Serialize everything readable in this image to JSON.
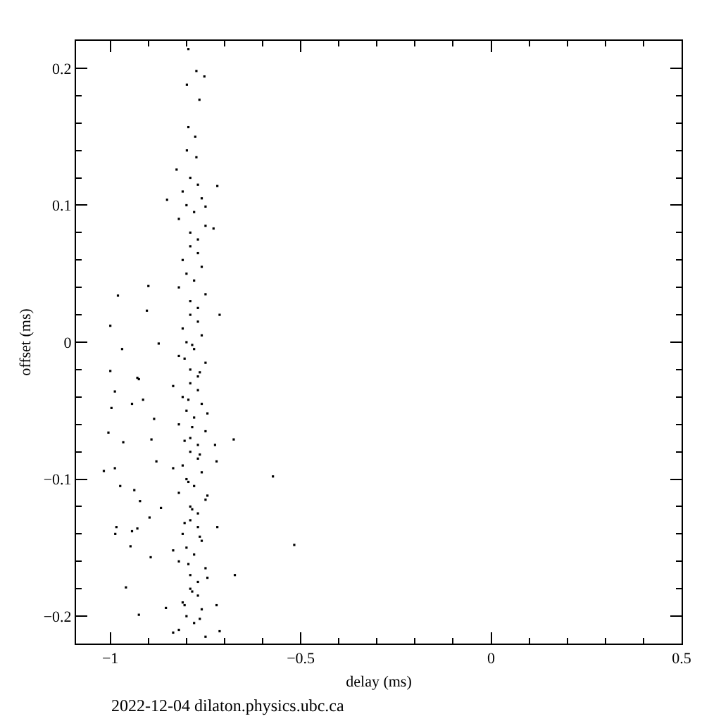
{
  "chart_data": {
    "type": "scatter",
    "xlabel": "delay (ms)",
    "ylabel": "offset (ms)",
    "annotations": [
      "2022-12-04 dilaton.physics.ubc.ca"
    ],
    "xlim": [
      -1.09,
      0.5
    ],
    "ylim": [
      -0.22,
      0.22
    ],
    "xticks": [
      -1,
      {
        "value": -0.9,
        "label": null
      },
      {
        "value": -0.8,
        "label": null
      },
      {
        "value": -0.7,
        "label": null
      },
      {
        "value": -0.6,
        "label": null
      },
      -0.5,
      {
        "value": -0.4,
        "label": null
      },
      {
        "value": -0.3,
        "label": null
      },
      {
        "value": -0.2,
        "label": null
      },
      {
        "value": -0.1,
        "label": null
      },
      0,
      {
        "value": 0.1,
        "label": null
      },
      {
        "value": 0.2,
        "label": null
      },
      {
        "value": 0.3,
        "label": null
      },
      {
        "value": 0.4,
        "label": null
      },
      0.5
    ],
    "yticks": [
      -0.2,
      {
        "value": -0.18,
        "label": null
      },
      {
        "value": -0.16,
        "label": null
      },
      {
        "value": -0.14,
        "label": null
      },
      {
        "value": -0.12,
        "label": null
      },
      -0.1,
      {
        "value": -0.08,
        "label": null
      },
      {
        "value": -0.06,
        "label": null
      },
      {
        "value": -0.04,
        "label": null
      },
      {
        "value": -0.02,
        "label": null
      },
      0,
      {
        "value": 0.02,
        "label": null
      },
      {
        "value": 0.04,
        "label": null
      },
      {
        "value": 0.06,
        "label": null
      },
      {
        "value": 0.08,
        "label": null
      },
      0.1,
      {
        "value": 0.12,
        "label": null
      },
      {
        "value": 0.14,
        "label": null
      },
      {
        "value": 0.16,
        "label": null
      },
      {
        "value": 0.18,
        "label": null
      },
      0.2
    ],
    "grid": false,
    "marker": "square",
    "series": [
      {
        "color": "#000000",
        "x": [
          -0.795,
          -0.774,
          -0.753,
          -0.799,
          -0.766,
          -0.795,
          -0.777,
          -0.799,
          -0.774,
          -0.826,
          -0.719,
          -0.851,
          -0.729,
          -0.75,
          -0.9,
          -0.98,
          -0.904,
          -1.0,
          -0.969,
          -0.713,
          -0.873,
          -0.929,
          -1.0,
          -0.988,
          -0.925,
          -0.943,
          -0.997,
          -1.005,
          -0.966,
          -0.892,
          -0.914,
          -1.017,
          -0.988,
          -0.974,
          -0.937,
          -0.922,
          -0.897,
          -0.867,
          -0.984,
          -0.943,
          -0.929,
          -0.987,
          -0.947,
          -0.894,
          -0.959,
          -0.925,
          -0.854,
          -0.573,
          -0.517,
          -0.676,
          -0.673,
          -0.725,
          -0.719,
          -0.721,
          -0.885,
          -0.879,
          -0.713,
          -0.721,
          -0.79,
          -0.77,
          -0.81,
          -0.76,
          -0.8,
          -0.78,
          -0.82,
          -0.75,
          -0.79,
          -0.77,
          -0.79,
          -0.77,
          -0.81,
          -0.76,
          -0.8,
          -0.78,
          -0.82,
          -0.75,
          -0.79,
          -0.77,
          -0.79,
          -0.77,
          -0.81,
          -0.76,
          -0.8,
          -0.78,
          -0.82,
          -0.75,
          -0.79,
          -0.77,
          -0.79,
          -0.77,
          -0.81,
          -0.76,
          -0.8,
          -0.78,
          -0.82,
          -0.75,
          -0.79,
          -0.77,
          -0.79,
          -0.77,
          -0.81,
          -0.76,
          -0.8,
          -0.78,
          -0.82,
          -0.75,
          -0.79,
          -0.77,
          -0.79,
          -0.77,
          -0.81,
          -0.76,
          -0.8,
          -0.78,
          -0.82,
          -0.75,
          -0.79,
          -0.77,
          -0.79,
          -0.77,
          -0.81,
          -0.76,
          -0.8,
          -0.78,
          -0.82,
          -0.75,
          -0.785,
          -0.805,
          -0.765,
          -0.835,
          -0.795,
          -0.745,
          -0.785,
          -0.805,
          -0.765,
          -0.835,
          -0.795,
          -0.745,
          -0.785,
          -0.805,
          -0.765,
          -0.835,
          -0.795,
          -0.745,
          -0.785,
          -0.805,
          -0.765,
          -0.835
        ],
        "values": [
          0.214,
          0.198,
          0.194,
          0.188,
          0.177,
          0.157,
          0.15,
          0.14,
          0.135,
          0.126,
          0.114,
          0.104,
          0.083,
          0.099,
          0.041,
          0.034,
          0.023,
          0.012,
          -0.005,
          0.02,
          -0.001,
          -0.026,
          -0.021,
          -0.036,
          -0.027,
          -0.045,
          -0.048,
          -0.066,
          -0.073,
          -0.071,
          -0.042,
          -0.094,
          -0.092,
          -0.105,
          -0.108,
          -0.116,
          -0.128,
          -0.121,
          -0.135,
          -0.138,
          -0.136,
          -0.14,
          -0.149,
          -0.157,
          -0.179,
          -0.199,
          -0.194,
          -0.098,
          -0.148,
          -0.071,
          -0.17,
          -0.075,
          -0.135,
          -0.087,
          -0.056,
          -0.087,
          -0.211,
          -0.192,
          0.12,
          0.115,
          0.11,
          0.105,
          0.1,
          0.095,
          0.09,
          0.085,
          0.08,
          0.075,
          0.07,
          0.065,
          0.06,
          0.055,
          0.05,
          0.045,
          0.04,
          0.035,
          0.03,
          0.025,
          0.02,
          0.015,
          0.01,
          0.005,
          0,
          -0.005,
          -0.01,
          -0.015,
          -0.02,
          -0.025,
          -0.03,
          -0.035,
          -0.04,
          -0.045,
          -0.05,
          -0.055,
          -0.06,
          -0.065,
          -0.07,
          -0.075,
          -0.08,
          -0.085,
          -0.09,
          -0.095,
          -0.1,
          -0.105,
          -0.11,
          -0.115,
          -0.12,
          -0.125,
          -0.13,
          -0.135,
          -0.14,
          -0.145,
          -0.15,
          -0.155,
          -0.16,
          -0.165,
          -0.17,
          -0.175,
          -0.18,
          -0.185,
          -0.19,
          -0.195,
          -0.2,
          -0.205,
          -0.21,
          -0.215,
          -0.002,
          -0.012,
          -0.022,
          -0.032,
          -0.042,
          -0.052,
          -0.062,
          -0.072,
          -0.082,
          -0.092,
          -0.102,
          -0.112,
          -0.122,
          -0.132,
          -0.142,
          -0.152,
          -0.162,
          -0.172,
          -0.182,
          -0.192,
          -0.202,
          -0.212
        ]
      }
    ]
  }
}
